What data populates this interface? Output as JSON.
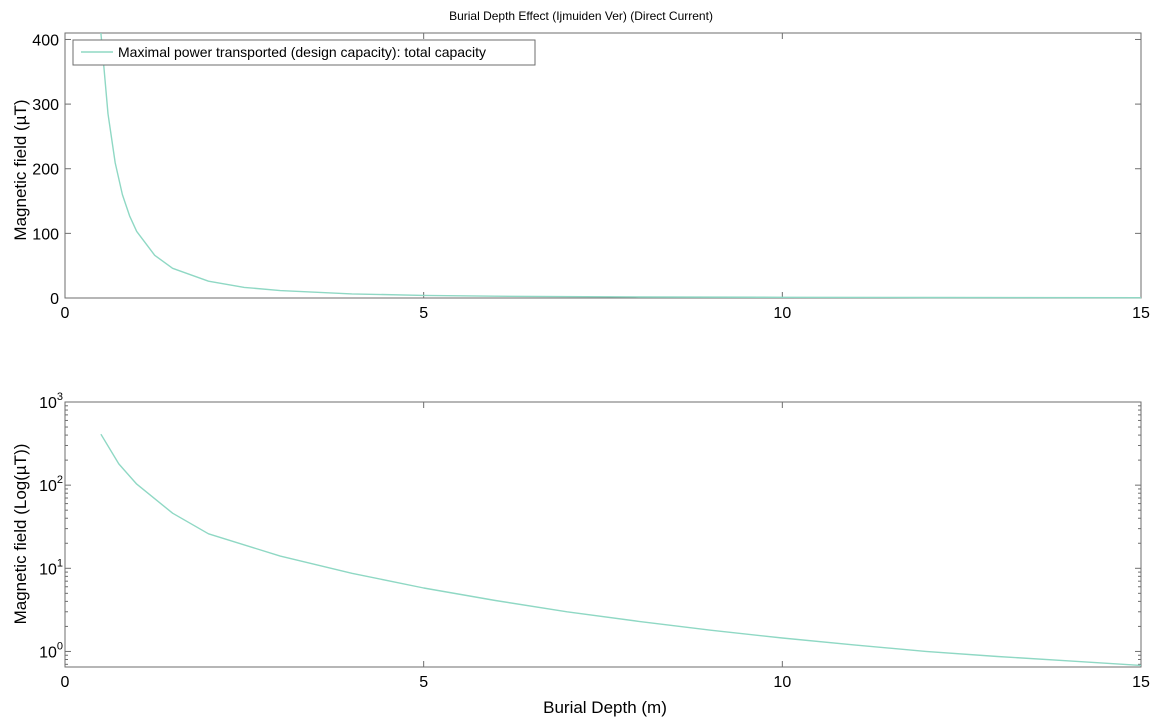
{
  "figure_title": "Burial Depth Effect (Ijmuiden Ver) (Direct Current)",
  "colors": {
    "series": "#8fd8c4",
    "axes": "#6e6e6e",
    "text": "#000000",
    "background": "#ffffff"
  },
  "chart_data": [
    {
      "type": "line",
      "title": "Burial Depth Effect (Ijmuiden Ver) (Direct Current)",
      "xlabel": "",
      "ylabel": "Magnetic field (µT)",
      "xlim": [
        0,
        15
      ],
      "ylim": [
        0,
        410
      ],
      "yscale": "linear",
      "x_ticks": [
        "0",
        "5",
        "10",
        "15"
      ],
      "y_ticks": [
        "0",
        "100",
        "200",
        "300",
        "400"
      ],
      "grid": false,
      "legend": "top-left",
      "series": [
        {
          "name": "Maximal power transported (design capacity): total capacity",
          "x": [
            0.5,
            0.6,
            0.7,
            0.8,
            0.9,
            1.0,
            1.25,
            1.5,
            2.0,
            2.5,
            3.0,
            4.0,
            5.0,
            6.0,
            8.0,
            10.0,
            12.0,
            15.0
          ],
          "y": [
            410,
            285,
            209,
            160,
            127,
            103,
            66,
            46,
            26,
            16.4,
            11.4,
            6.4,
            4.1,
            2.85,
            1.6,
            1.03,
            0.71,
            0.46
          ]
        }
      ]
    },
    {
      "type": "line",
      "title": "",
      "xlabel": "Burial Depth (m)",
      "ylabel": "Magnetic field (Log(µT))",
      "xlim": [
        0,
        15
      ],
      "ylim": [
        0.65,
        1000
      ],
      "yscale": "log",
      "x_ticks": [
        "0",
        "5",
        "10",
        "15"
      ],
      "y_ticks": [
        {
          "base": "10",
          "exp": "0"
        },
        {
          "base": "10",
          "exp": "1"
        },
        {
          "base": "10",
          "exp": "2"
        },
        {
          "base": "10",
          "exp": "3"
        }
      ],
      "grid": false,
      "legend": "none",
      "series": [
        {
          "name": "",
          "x": [
            0.5,
            0.75,
            1.0,
            1.5,
            2.0,
            3.0,
            4.0,
            5.0,
            6.0,
            7.0,
            8.0,
            9.0,
            10.0,
            11.0,
            12.0,
            13.0,
            14.0,
            15.0
          ],
          "y": [
            410,
            180,
            103,
            46,
            26,
            14,
            8.7,
            5.8,
            4.1,
            3.0,
            2.3,
            1.8,
            1.45,
            1.2,
            1.0,
            0.87,
            0.77,
            0.68
          ]
        }
      ]
    }
  ]
}
